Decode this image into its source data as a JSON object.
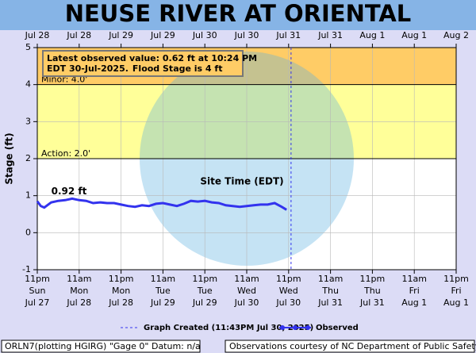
{
  "chart_data": {
    "type": "line",
    "title": "NEUSE RIVER AT ORIENTAL",
    "x_label": "Site Time (EDT)",
    "y_label": "Stage (ft)",
    "xlim": [
      0,
      120
    ],
    "ylim": [
      -1,
      5
    ],
    "yticks": [
      -1,
      0,
      1,
      2,
      3,
      4,
      5
    ],
    "xticks": [
      {
        "value": 0,
        "label": [
          "11pm",
          "Sun",
          "Jul 27"
        ]
      },
      {
        "value": 12,
        "label": [
          "11am",
          "Mon",
          "Jul 28"
        ]
      },
      {
        "value": 24,
        "label": [
          "11pm",
          "Mon",
          "Jul 28"
        ]
      },
      {
        "value": 36,
        "label": [
          "11am",
          "Tue",
          "Jul 29"
        ]
      },
      {
        "value": 48,
        "label": [
          "11pm",
          "Tue",
          "Jul 29"
        ]
      },
      {
        "value": 60,
        "label": [
          "11am",
          "Wed",
          "Jul 30"
        ]
      },
      {
        "value": 72,
        "label": [
          "11pm",
          "Wed",
          "Jul 30"
        ]
      },
      {
        "value": 84,
        "label": [
          "11am",
          "Thu",
          "Jul 31"
        ]
      },
      {
        "value": 96,
        "label": [
          "11pm",
          "Thu",
          "Jul 31"
        ]
      },
      {
        "value": 108,
        "label": [
          "11am",
          "Fri",
          "Aug 1"
        ]
      },
      {
        "value": 120,
        "label": [
          "11pm",
          "Fri",
          "Aug 1"
        ]
      }
    ],
    "top_xticks": [
      {
        "value": 0,
        "label": "Jul 28"
      },
      {
        "value": 12,
        "label": "Jul 28"
      },
      {
        "value": 24,
        "label": "Jul 29"
      },
      {
        "value": 36,
        "label": "Jul 29"
      },
      {
        "value": 48,
        "label": "Jul 30"
      },
      {
        "value": 60,
        "label": "Jul 30"
      },
      {
        "value": 72,
        "label": "Jul 31"
      },
      {
        "value": 84,
        "label": "Jul 31"
      },
      {
        "value": 96,
        "label": "Aug 1"
      },
      {
        "value": 108,
        "label": "Aug 1"
      },
      {
        "value": 120,
        "label": "Aug 2"
      }
    ],
    "grid": true,
    "thresholds": [
      {
        "label": "Minor: 4.0'",
        "value": 4,
        "color": "#ffcc66"
      },
      {
        "label": "Action: 2.0'",
        "value": 2,
        "color": "#ffff99"
      }
    ],
    "x": [
      0,
      1,
      2,
      4,
      6,
      8,
      10,
      12,
      14,
      16,
      18,
      20,
      22,
      24,
      26,
      28,
      30,
      32,
      34,
      36,
      38,
      40,
      42,
      44,
      46,
      48,
      50,
      52,
      54,
      56,
      58,
      60,
      62,
      64,
      66,
      68,
      70,
      71.4
    ],
    "series": [
      {
        "name": "Observed",
        "color": "#3333ee",
        "values": [
          0.85,
          0.72,
          0.68,
          0.82,
          0.86,
          0.88,
          0.92,
          0.88,
          0.86,
          0.8,
          0.82,
          0.8,
          0.8,
          0.76,
          0.72,
          0.7,
          0.74,
          0.72,
          0.78,
          0.8,
          0.76,
          0.72,
          0.78,
          0.86,
          0.84,
          0.86,
          0.82,
          0.8,
          0.74,
          0.72,
          0.7,
          0.72,
          0.74,
          0.76,
          0.76,
          0.8,
          0.7,
          0.62
        ]
      }
    ],
    "peak": {
      "label": "0.92 ft",
      "x": 10,
      "value": 0.92
    },
    "created": {
      "name": "Graph Created (11:43PM Jul 30, 2025)",
      "x": 72.7
    },
    "latest_note": [
      "Latest observed value: 0.62 ft at 10:24 PM",
      "EDT 30-Jul-2025.",
      "Flood Stage is 4 ft"
    ],
    "footer_left": "ORLN7(plotting HGIRG) \"Gage 0\" Datum: n/a",
    "footer_right": "Observations courtesy of NC Department of Public Safety"
  }
}
